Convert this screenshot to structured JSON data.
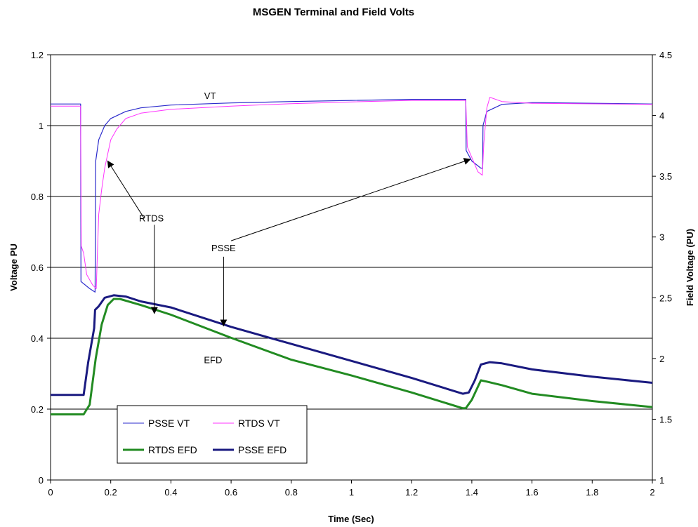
{
  "chart_data": {
    "type": "line",
    "title": "MSGEN Terminal and Field Volts",
    "xlabel": "Time (Sec)",
    "ylabel": "Voltage PU",
    "y2label": "Field Voltage (PU)",
    "xlim": [
      0,
      2
    ],
    "ylim": [
      0,
      1.2
    ],
    "y2lim": [
      1,
      4.5
    ],
    "xticks": [
      "0",
      "0.2",
      "0.4",
      "0.6",
      "0.8",
      "1",
      "1.2",
      "1.4",
      "1.6",
      "1.8",
      "2"
    ],
    "yticks": [
      "0",
      "0.2",
      "0.4",
      "0.6",
      "0.8",
      "1",
      "1.2"
    ],
    "y2ticks": [
      "1",
      "1.5",
      "2",
      "2.5",
      "3",
      "3.5",
      "4",
      "4.5"
    ],
    "grid": "horizontal major",
    "legend_position": "bottom-left",
    "series": [
      {
        "name": "PSSE VT",
        "axis": "left",
        "color": "#2b2bcc",
        "points": [
          [
            0,
            1.061
          ],
          [
            0.1,
            1.061
          ],
          [
            0.101,
            0.56
          ],
          [
            0.13,
            0.54
          ],
          [
            0.148,
            0.53
          ],
          [
            0.15,
            0.9
          ],
          [
            0.16,
            0.96
          ],
          [
            0.18,
            1.0
          ],
          [
            0.2,
            1.02
          ],
          [
            0.25,
            1.04
          ],
          [
            0.3,
            1.05
          ],
          [
            0.4,
            1.058
          ],
          [
            0.6,
            1.064
          ],
          [
            0.8,
            1.068
          ],
          [
            1.0,
            1.071
          ],
          [
            1.2,
            1.074
          ],
          [
            1.37,
            1.074
          ],
          [
            1.38,
            1.074
          ],
          [
            1.381,
            0.93
          ],
          [
            1.4,
            0.9
          ],
          [
            1.43,
            0.88
          ],
          [
            1.436,
            0.88
          ],
          [
            1.437,
            1.0
          ],
          [
            1.45,
            1.04
          ],
          [
            1.5,
            1.06
          ],
          [
            1.6,
            1.065
          ],
          [
            2.0,
            1.061
          ]
        ]
      },
      {
        "name": "RTDS VT",
        "axis": "left",
        "color": "#ff33ff",
        "points": [
          [
            0,
            1.055
          ],
          [
            0.1,
            1.055
          ],
          [
            0.102,
            0.66
          ],
          [
            0.11,
            0.64
          ],
          [
            0.12,
            0.58
          ],
          [
            0.14,
            0.55
          ],
          [
            0.152,
            0.54
          ],
          [
            0.155,
            0.62
          ],
          [
            0.16,
            0.75
          ],
          [
            0.17,
            0.82
          ],
          [
            0.18,
            0.88
          ],
          [
            0.19,
            0.92
          ],
          [
            0.2,
            0.96
          ],
          [
            0.22,
            0.99
          ],
          [
            0.25,
            1.02
          ],
          [
            0.3,
            1.035
          ],
          [
            0.4,
            1.046
          ],
          [
            0.6,
            1.055
          ],
          [
            0.8,
            1.062
          ],
          [
            1.0,
            1.067
          ],
          [
            1.2,
            1.071
          ],
          [
            1.38,
            1.071
          ],
          [
            1.385,
            0.94
          ],
          [
            1.4,
            0.91
          ],
          [
            1.42,
            0.87
          ],
          [
            1.435,
            0.86
          ],
          [
            1.44,
            0.95
          ],
          [
            1.45,
            1.05
          ],
          [
            1.46,
            1.08
          ],
          [
            1.5,
            1.068
          ],
          [
            1.6,
            1.063
          ],
          [
            2.0,
            1.06
          ]
        ]
      },
      {
        "name": "RTDS EFD",
        "axis": "right",
        "color": "#228b22",
        "points": [
          [
            0,
            1.54
          ],
          [
            0.11,
            1.54
          ],
          [
            0.13,
            1.62
          ],
          [
            0.15,
            2.0
          ],
          [
            0.17,
            2.28
          ],
          [
            0.19,
            2.44
          ],
          [
            0.21,
            2.49
          ],
          [
            0.23,
            2.49
          ],
          [
            0.3,
            2.44
          ],
          [
            0.4,
            2.36
          ],
          [
            0.6,
            2.17
          ],
          [
            0.8,
            1.99
          ],
          [
            1.0,
            1.86
          ],
          [
            1.2,
            1.72
          ],
          [
            1.37,
            1.59
          ],
          [
            1.38,
            1.59
          ],
          [
            1.4,
            1.66
          ],
          [
            1.43,
            1.82
          ],
          [
            1.45,
            1.81
          ],
          [
            1.5,
            1.78
          ],
          [
            1.6,
            1.71
          ],
          [
            1.8,
            1.65
          ],
          [
            2.0,
            1.6
          ]
        ]
      },
      {
        "name": "PSSE EFD",
        "axis": "right",
        "color": "#1a1a80",
        "points": [
          [
            0,
            1.7
          ],
          [
            0.11,
            1.7
          ],
          [
            0.125,
            1.97
          ],
          [
            0.145,
            2.25
          ],
          [
            0.148,
            2.4
          ],
          [
            0.16,
            2.43
          ],
          [
            0.18,
            2.5
          ],
          [
            0.21,
            2.52
          ],
          [
            0.25,
            2.51
          ],
          [
            0.3,
            2.47
          ],
          [
            0.4,
            2.42
          ],
          [
            0.6,
            2.26
          ],
          [
            0.8,
            2.12
          ],
          [
            1.0,
            1.98
          ],
          [
            1.2,
            1.84
          ],
          [
            1.37,
            1.71
          ],
          [
            1.39,
            1.72
          ],
          [
            1.41,
            1.82
          ],
          [
            1.43,
            1.95
          ],
          [
            1.46,
            1.97
          ],
          [
            1.5,
            1.96
          ],
          [
            1.6,
            1.91
          ],
          [
            1.8,
            1.85
          ],
          [
            2.0,
            1.8
          ]
        ]
      }
    ],
    "annotations": [
      {
        "text": "VT",
        "x": 0.53,
        "y": 1.085,
        "axis": "left"
      },
      {
        "text": "EFD",
        "x": 0.54,
        "y": 0.34,
        "axis": "left"
      },
      {
        "text": "RTDS",
        "x": 0.335,
        "y": 0.74,
        "axis": "left"
      },
      {
        "text": "PSSE",
        "x": 0.575,
        "y": 0.655,
        "axis": "left"
      }
    ],
    "arrows": [
      {
        "from": [
          0.31,
          0.74
        ],
        "to": [
          0.19,
          0.9
        ],
        "axis": "left"
      },
      {
        "from": [
          0.345,
          0.72
        ],
        "to": [
          0.345,
          0.47
        ],
        "axis": "left"
      },
      {
        "from": [
          0.6,
          0.675
        ],
        "to": [
          1.395,
          0.905
        ],
        "axis": "left"
      },
      {
        "from": [
          0.575,
          0.63
        ],
        "to": [
          0.575,
          0.435
        ],
        "axis": "left"
      }
    ]
  },
  "legend": {
    "items": [
      {
        "label": "PSSE VT",
        "color": "#2b2bcc",
        "width": 1
      },
      {
        "label": "RTDS VT",
        "color": "#ff33ff",
        "width": 1
      },
      {
        "label": "RTDS EFD",
        "color": "#228b22",
        "width": 3
      },
      {
        "label": "PSSE EFD",
        "color": "#1a1a80",
        "width": 3
      }
    ]
  }
}
